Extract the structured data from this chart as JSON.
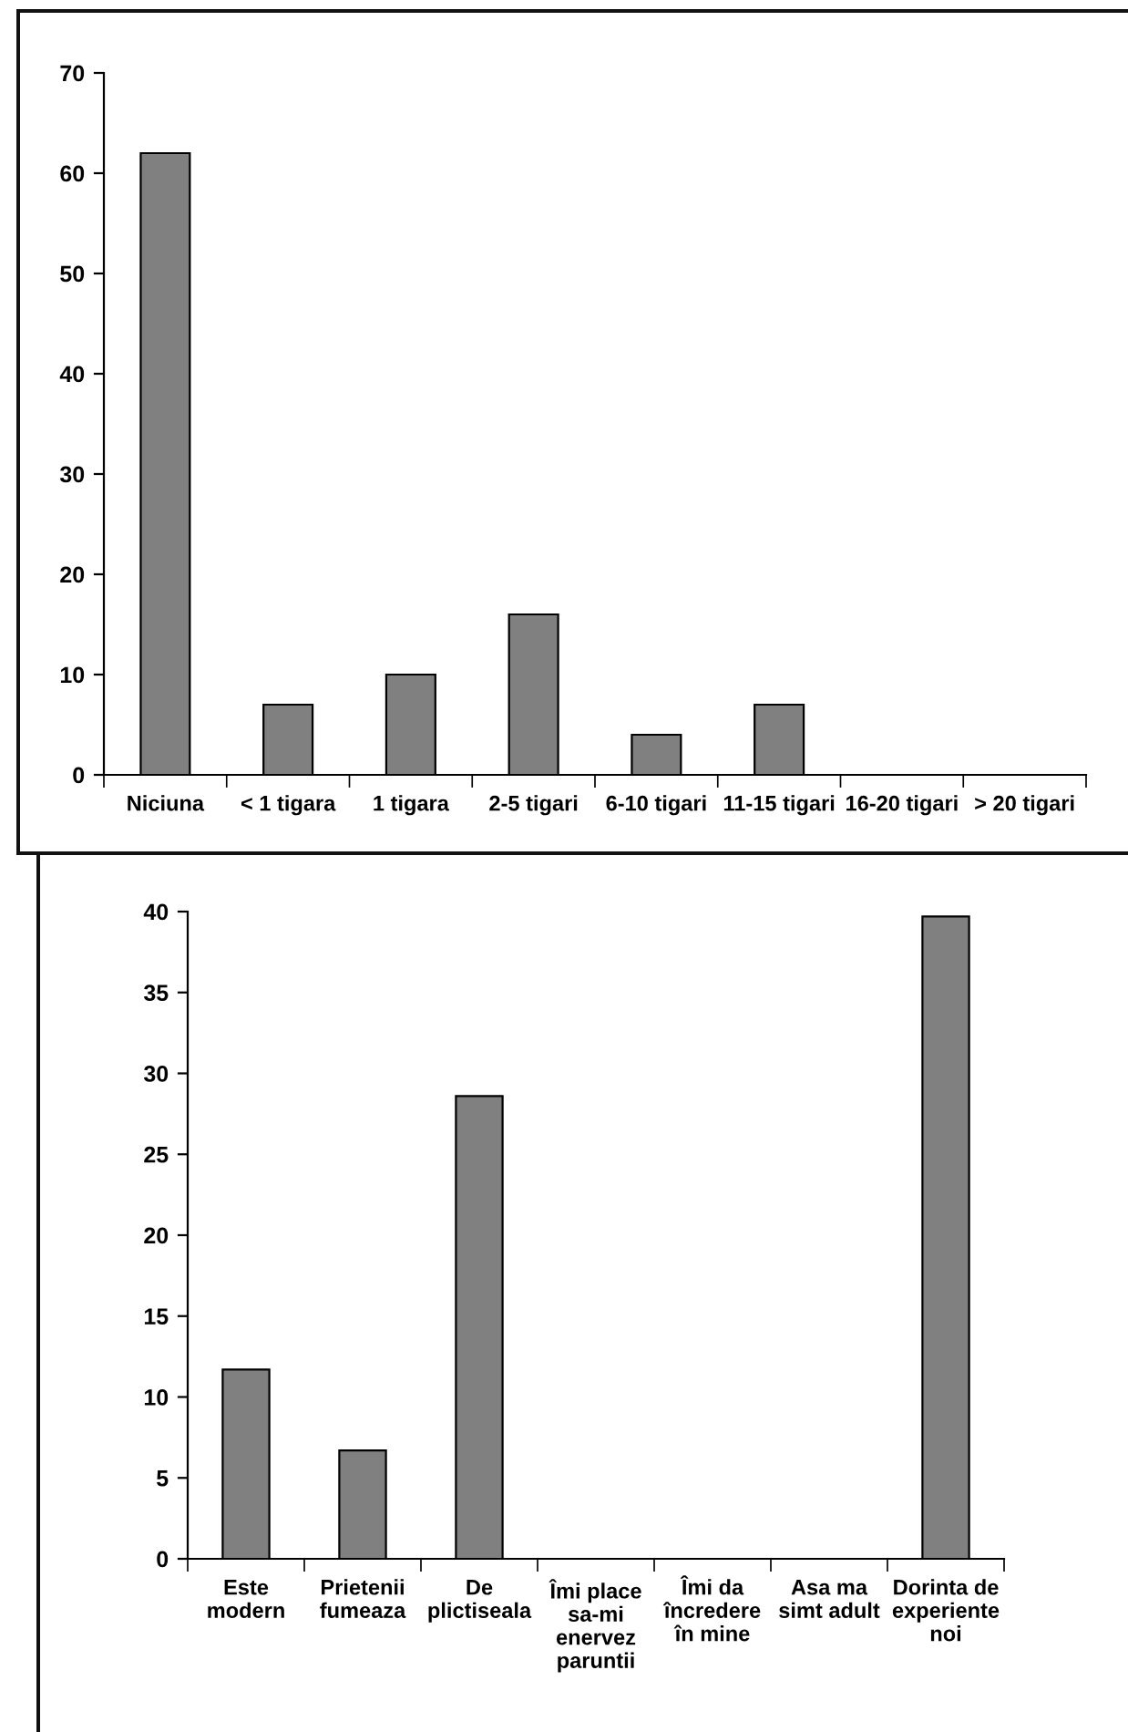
{
  "chart_data": [
    {
      "type": "bar",
      "categories": [
        "Niciuna",
        "< 1 tigara",
        "1 tigara",
        "2-5 tigari",
        "6-10 tigari",
        "11-15 tigari",
        "16-20 tigari",
        "> 20 tigari"
      ],
      "values": [
        62,
        7,
        10,
        16,
        4,
        7,
        0,
        0
      ],
      "color": "#808080",
      "ylim": [
        0,
        70
      ],
      "yticks": [
        0,
        10,
        20,
        30,
        40,
        50,
        60,
        70
      ],
      "grid": false,
      "legend": false
    },
    {
      "type": "bar",
      "categories": [
        "Este\nmodern",
        "Prietenii\nfumeaza",
        "De\nplictiseala",
        "Îmi place\nsa-mi\nenervez\nparuntii",
        "Îmi da\nîncredere\nîn mine",
        "Asa ma\nsimt adult",
        "Dorinta de\nexperiente\nnoi"
      ],
      "values": [
        11.7,
        6.7,
        28.6,
        0,
        0,
        0,
        39.7
      ],
      "color": "#808080",
      "ylim": [
        0,
        40
      ],
      "yticks": [
        0,
        5,
        10,
        15,
        20,
        25,
        30,
        35,
        40
      ],
      "grid": false,
      "legend": false
    }
  ]
}
